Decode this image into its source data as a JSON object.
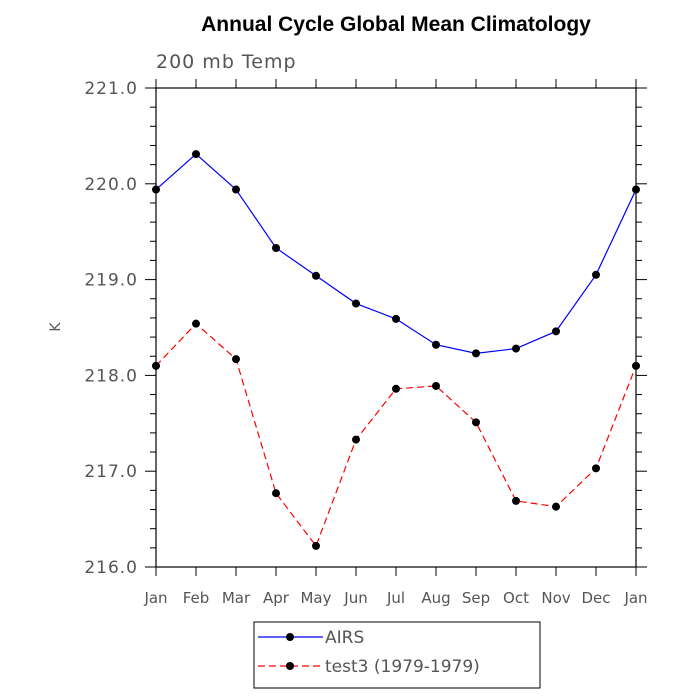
{
  "chart_data": {
    "type": "line",
    "title": "Annual Cycle Global Mean Climatology",
    "subtitle": "200 mb Temp",
    "xlabel": "",
    "ylabel": "K",
    "categories": [
      "Jan",
      "Feb",
      "Mar",
      "Apr",
      "May",
      "Jun",
      "Jul",
      "Aug",
      "Sep",
      "Oct",
      "Nov",
      "Dec",
      "Jan"
    ],
    "ylim": [
      216.0,
      221.0
    ],
    "yticks": [
      "216.0",
      "217.0",
      "218.0",
      "219.0",
      "220.0",
      "221.0"
    ],
    "grid": false,
    "legend_position": "bottom",
    "series": [
      {
        "name": "AIRS",
        "color": "#0000ff",
        "line_style": "solid",
        "values": [
          219.94,
          220.31,
          219.94,
          219.33,
          219.04,
          218.75,
          218.59,
          218.32,
          218.23,
          218.28,
          218.46,
          219.05,
          219.94
        ]
      },
      {
        "name": "test3 (1979-1979)",
        "color": "#ff0000",
        "line_style": "dashed",
        "values": [
          218.1,
          218.54,
          218.17,
          216.77,
          216.22,
          217.33,
          217.86,
          217.89,
          217.51,
          216.69,
          216.63,
          217.03,
          218.1
        ]
      }
    ]
  }
}
